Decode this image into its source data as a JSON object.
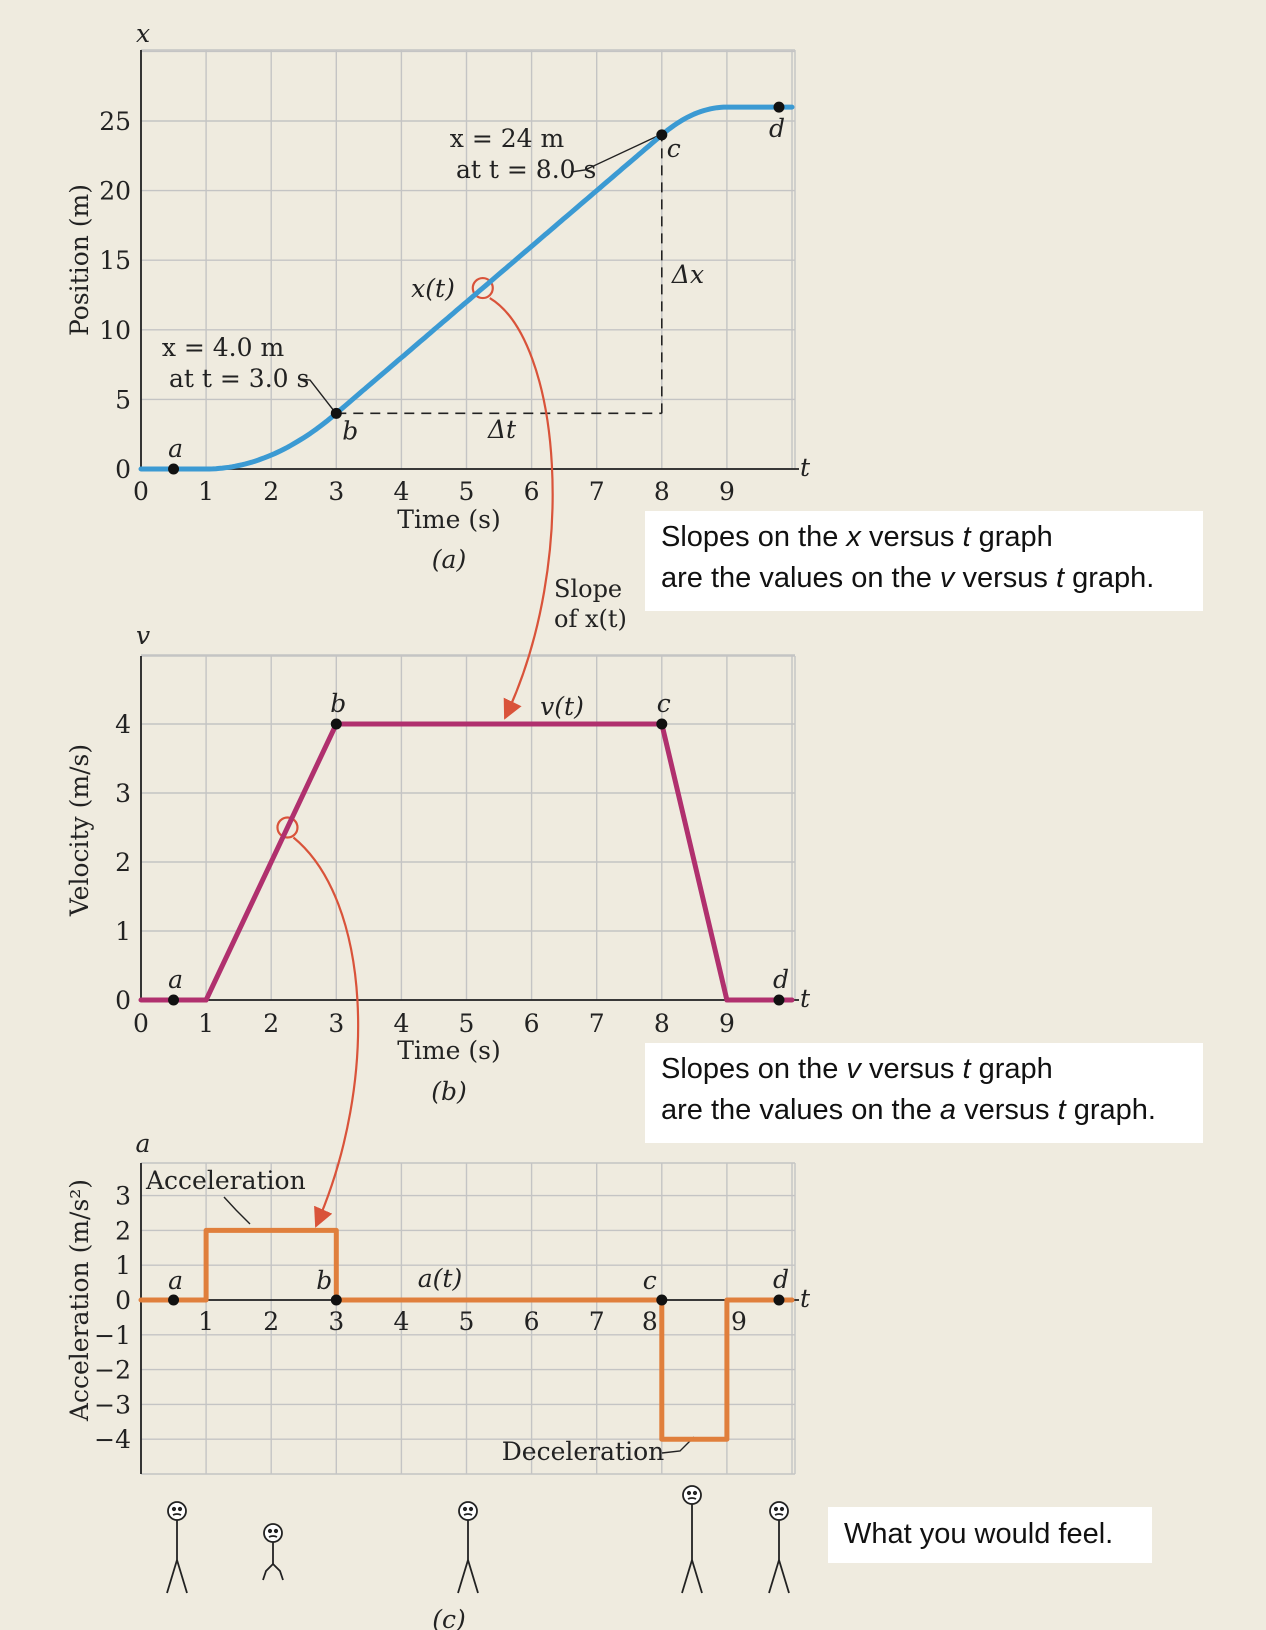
{
  "chart_data": [
    {
      "type": "line",
      "panel_label": "(a)",
      "yaxis_symbol": "x",
      "xaxis_symbol": "t",
      "ylabel": "Position (m)",
      "xlabel": "Time (s)",
      "xlim": [
        0,
        10
      ],
      "ylim": [
        0,
        30
      ],
      "x_ticks": [
        "0",
        "1",
        "2",
        "3",
        "4",
        "5",
        "6",
        "7",
        "8",
        "9"
      ],
      "y_ticks": [
        "0",
        "5",
        "10",
        "15",
        "20",
        "25"
      ],
      "grid": true,
      "series": [
        {
          "name": "x(t)",
          "color": "#3b9ad3",
          "x": [
            0,
            1,
            1.5,
            2,
            2.5,
            3,
            8,
            8.5,
            9,
            10
          ],
          "y": [
            0,
            0,
            0.25,
            1,
            2.25,
            4,
            24,
            25.5,
            26,
            26
          ]
        }
      ],
      "points": [
        {
          "label": "a",
          "x": 0.5,
          "y": 0
        },
        {
          "label": "b",
          "x": 3,
          "y": 4
        },
        {
          "label": "c",
          "x": 8,
          "y": 24
        },
        {
          "label": "d",
          "x": 9.8,
          "y": 26
        }
      ],
      "annotations": {
        "b_line1": "x = 4.0 m",
        "b_line2": "at t = 3.0 s",
        "c_line1": "x = 24 m",
        "c_line2": "at t = 8.0 s",
        "delta_t": "Δt",
        "delta_x": "Δx",
        "slope_line1": "Slope",
        "slope_line2": "of x(t)"
      }
    },
    {
      "type": "line",
      "panel_label": "(b)",
      "yaxis_symbol": "v",
      "xaxis_symbol": "t",
      "ylabel": "Velocity (m/s)",
      "xlabel": "Time (s)",
      "xlim": [
        0,
        10
      ],
      "ylim": [
        0,
        5
      ],
      "x_ticks": [
        "0",
        "1",
        "2",
        "3",
        "4",
        "5",
        "6",
        "7",
        "8",
        "9"
      ],
      "y_ticks": [
        "0",
        "1",
        "2",
        "3",
        "4"
      ],
      "grid": true,
      "series": [
        {
          "name": "v(t)",
          "color": "#b0306e",
          "x": [
            0,
            1,
            3,
            8,
            9,
            10
          ],
          "y": [
            0,
            0,
            4,
            4,
            0,
            0
          ]
        }
      ],
      "points": [
        {
          "label": "a",
          "x": 0.5,
          "y": 0
        },
        {
          "label": "b",
          "x": 3,
          "y": 4
        },
        {
          "label": "c",
          "x": 8,
          "y": 4
        },
        {
          "label": "d",
          "x": 9.8,
          "y": 0
        }
      ]
    },
    {
      "type": "line",
      "panel_label": "(c)",
      "yaxis_symbol": "a",
      "xaxis_symbol": "t",
      "ylabel": "Acceleration (m/s²)",
      "xlim": [
        0,
        10
      ],
      "ylim": [
        -5,
        4
      ],
      "x_ticks": [
        "1",
        "2",
        "3",
        "4",
        "5",
        "6",
        "7",
        "8",
        "9"
      ],
      "y_ticks": [
        "3",
        "2",
        "1",
        "0",
        "−1",
        "−2",
        "−3",
        "−4"
      ],
      "grid": true,
      "series": [
        {
          "name": "a(t)",
          "color": "#e07f3c",
          "x": [
            0,
            1,
            1,
            3,
            3,
            8,
            8,
            9,
            9,
            10
          ],
          "y": [
            0,
            0,
            2,
            2,
            0,
            0,
            -4,
            -4,
            0,
            0
          ]
        }
      ],
      "points": [
        {
          "label": "a",
          "x": 0.5,
          "y": 0
        },
        {
          "label": "b",
          "x": 3,
          "y": 0
        },
        {
          "label": "c",
          "x": 8,
          "y": 0
        },
        {
          "label": "d",
          "x": 9.8,
          "y": 0
        }
      ],
      "annotations": {
        "acceleration": "Acceleration",
        "deceleration": "Deceleration"
      }
    }
  ],
  "callouts": {
    "one_pre": "Slopes on the ",
    "one_var1": "x",
    "one_mid": " versus ",
    "one_var2": "t",
    "one_post": " graph",
    "one_line2_pre": "are the values on the ",
    "one_line2_var1": "v",
    "one_line2_mid": " versus ",
    "one_line2_var2": "t",
    "one_line2_post": " graph.",
    "two_pre": "Slopes on the ",
    "two_var1": "v",
    "two_mid": " versus ",
    "two_var2": "t",
    "two_post": " graph",
    "two_line2_pre": "are the values on the ",
    "two_line2_var1": "a",
    "two_line2_mid": " versus ",
    "two_line2_var2": "t",
    "two_line2_post": " graph.",
    "three": "What you would feel."
  },
  "colors": {
    "background": "#efebdf",
    "grid": "#c4c4c4",
    "arrow": "#d9533a"
  }
}
